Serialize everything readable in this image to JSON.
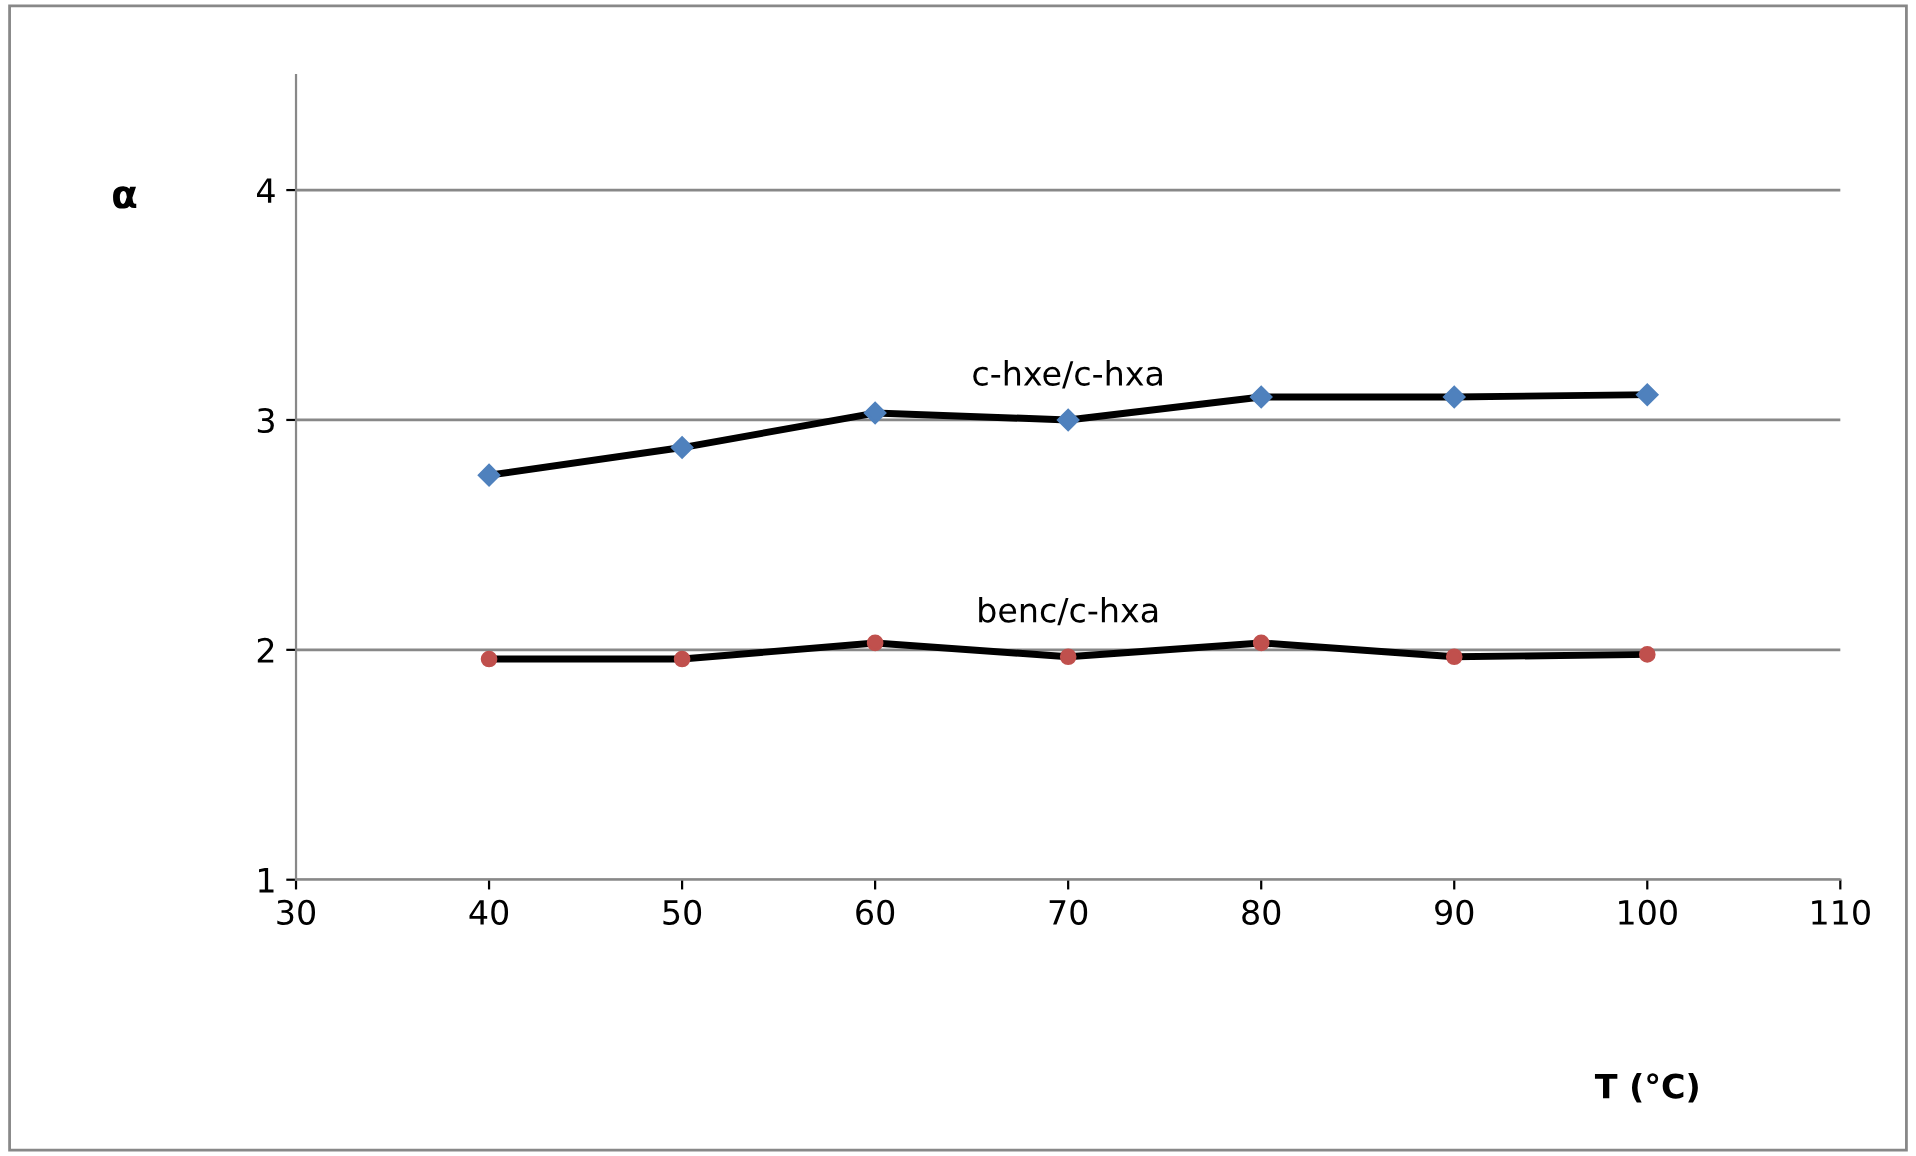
{
  "chart_data": {
    "type": "line",
    "xlabel": "T (°C)",
    "ylabel": "α",
    "x": [
      40,
      50,
      60,
      70,
      80,
      90,
      100
    ],
    "series": [
      {
        "name": "c-hxe/c-hxa",
        "color": "#4f81bd",
        "marker": "diamond",
        "values": [
          2.76,
          2.88,
          3.03,
          3.0,
          3.1,
          3.1,
          3.11
        ]
      },
      {
        "name": "benc/c-hxa",
        "color": "#c0504d",
        "marker": "circle",
        "values": [
          1.96,
          1.96,
          2.03,
          1.97,
          2.03,
          1.97,
          1.98
        ]
      }
    ],
    "xlim": [
      30,
      110
    ],
    "xticks": [
      30,
      40,
      50,
      60,
      70,
      80,
      90,
      100,
      110
    ],
    "ylim": [
      1,
      4.5
    ],
    "yticks": [
      1,
      2,
      3,
      4
    ],
    "grid": "y",
    "legend": false,
    "line_style": "solid"
  }
}
